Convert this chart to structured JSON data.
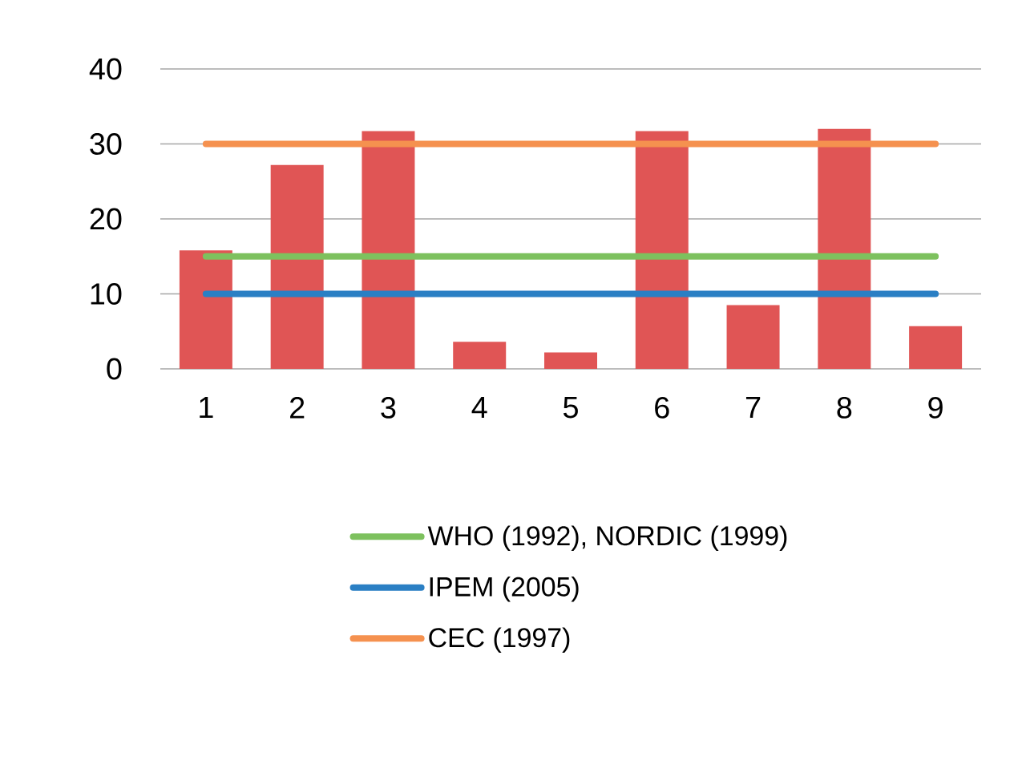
{
  "chart_data": {
    "type": "bar",
    "categories": [
      "1",
      "2",
      "3",
      "4",
      "5",
      "6",
      "7",
      "8",
      "9"
    ],
    "series": [
      {
        "color": "#e05555",
        "values": [
          15.8,
          27.2,
          31.7,
          3.6,
          2.2,
          31.7,
          8.5,
          32,
          5.7
        ]
      },
      {
        "type": "line",
        "name": "WHO (1992), NORDIC (1999)",
        "color": "#7dc15e",
        "values": [
          15,
          15,
          15,
          15,
          15,
          15,
          15,
          15,
          15
        ]
      },
      {
        "type": "line",
        "name": "IPEM (2005)",
        "color": "#2a7fc4",
        "values": [
          10,
          10,
          10,
          10,
          10,
          10,
          10,
          10,
          10
        ]
      },
      {
        "type": "line",
        "name": "CEC (1997)",
        "color": "#f5914f",
        "values": [
          30,
          30,
          30,
          30,
          30,
          30,
          30,
          30,
          30
        ]
      }
    ],
    "ylim": [
      0,
      40
    ],
    "yticks": [
      0,
      10,
      20,
      30,
      40
    ],
    "grid": "y",
    "legend": "bottom",
    "marker": "none",
    "line_style": "solid"
  }
}
